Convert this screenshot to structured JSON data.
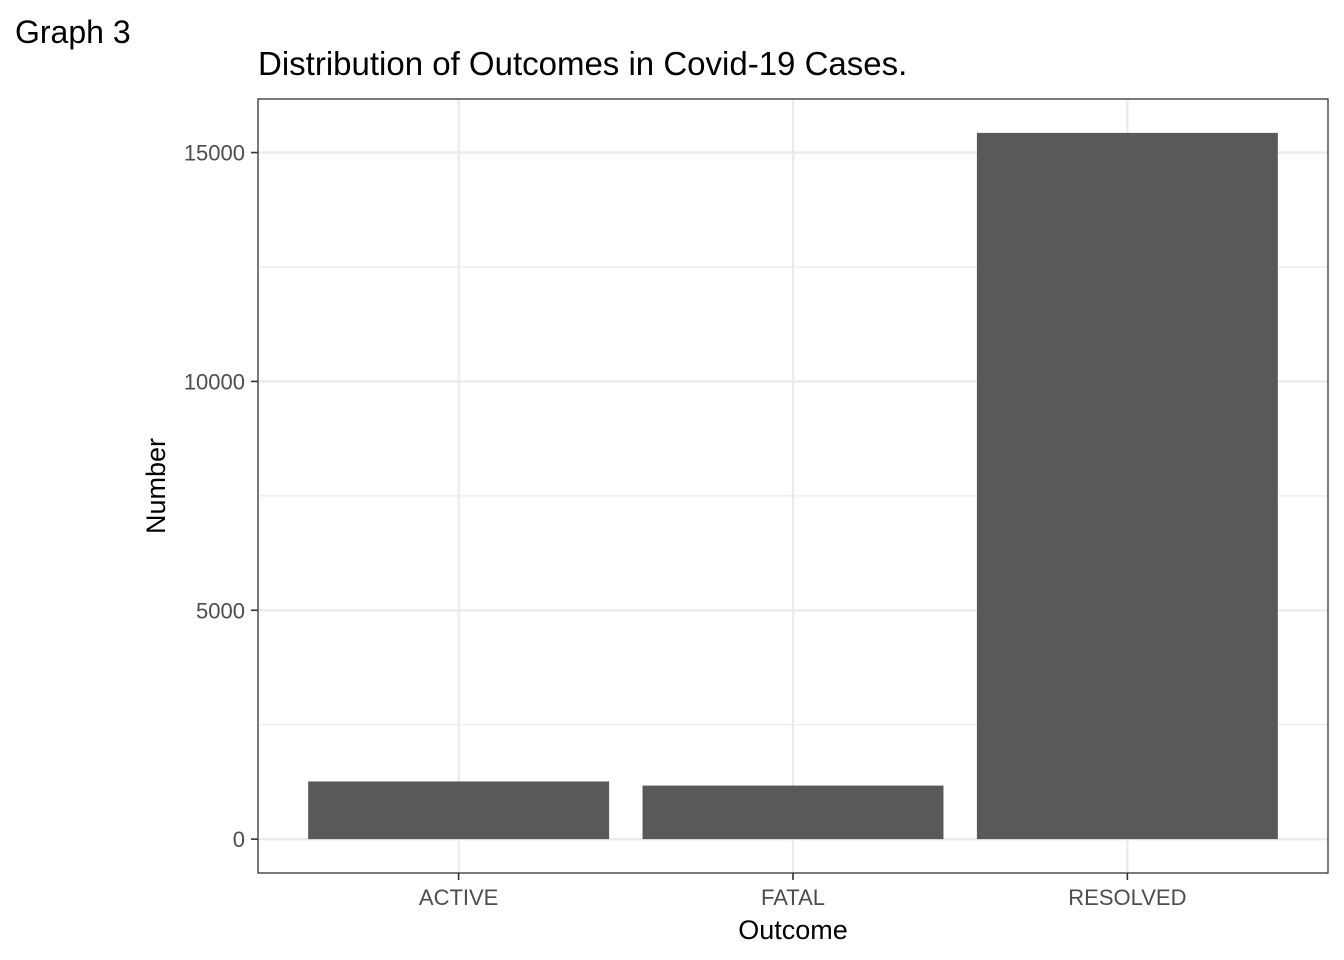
{
  "figure_tag": "Graph 3",
  "chart_data": {
    "type": "bar",
    "title": "Distribution of Outcomes in Covid-19 Cases.",
    "xlabel": "Outcome",
    "ylabel": "Number",
    "categories": [
      "ACTIVE",
      "FATAL",
      "RESOLVED"
    ],
    "values": [
      1260,
      1170,
      15430
    ],
    "ylim": [
      -740,
      16170
    ],
    "y_ticks": [
      0,
      5000,
      10000,
      15000
    ],
    "y_tick_labels": [
      "0",
      "5000",
      "10000",
      "15000"
    ],
    "y_minor_ticks": [
      2500,
      7500,
      12500
    ],
    "grid": true,
    "legend": "none",
    "colors": {
      "bar": "#595959",
      "grid": "#ebebeb",
      "panel_border": "#333333",
      "tick_text": "#4d4d4d",
      "background": "#ffffff"
    }
  }
}
